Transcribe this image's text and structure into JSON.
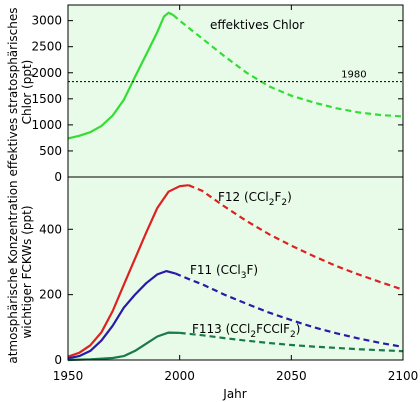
{
  "colors": {
    "plot_background": "#e8fbe8",
    "chlorine": "#33dd33",
    "f12": "#dd2222",
    "f11": "#2a1aa8",
    "f113": "#1a7a4a",
    "axis": "#000000"
  },
  "chart_data": [
    {
      "type": "line",
      "ylabel_line1": "effektives stratosphärisches",
      "ylabel_line2": "Chlor (ppt)",
      "xlim": [
        1950,
        2100
      ],
      "ylim": [
        0,
        3300
      ],
      "yticks": [
        0,
        500,
        1000,
        1500,
        2000,
        2500,
        3000
      ],
      "reference_line": {
        "value": 1830,
        "label": "1980"
      },
      "series": [
        {
          "name": "effektives Chlor",
          "color_key": "chlorine",
          "observed": [
            [
              1950,
              740
            ],
            [
              1955,
              790
            ],
            [
              1960,
              860
            ],
            [
              1965,
              980
            ],
            [
              1970,
              1180
            ],
            [
              1975,
              1480
            ],
            [
              1980,
              1920
            ],
            [
              1985,
              2350
            ],
            [
              1990,
              2780
            ],
            [
              1993,
              3080
            ],
            [
              1995,
              3150
            ],
            [
              1997,
              3110
            ]
          ],
          "projected": [
            [
              1997,
              3110
            ],
            [
              2000,
              3000
            ],
            [
              2010,
              2660
            ],
            [
              2020,
              2320
            ],
            [
              2030,
              2000
            ],
            [
              2040,
              1740
            ],
            [
              2050,
              1560
            ],
            [
              2060,
              1430
            ],
            [
              2070,
              1320
            ],
            [
              2080,
              1240
            ],
            [
              2090,
              1190
            ],
            [
              2100,
              1160
            ]
          ]
        }
      ]
    },
    {
      "type": "line",
      "xlabel": "Jahr",
      "ylabel_line1": "atmosphärische Konzentration",
      "ylabel_line2": "wichtiger FCKWs (ppt)",
      "xlim": [
        1950,
        2100
      ],
      "ylim": [
        0,
        560
      ],
      "xticks": [
        1950,
        2000,
        2050,
        2100
      ],
      "yticks": [
        0,
        200,
        400
      ],
      "series": [
        {
          "name": "F12 (CCl2F2)",
          "label_main": "F12 (CCl",
          "label_sub1": "2",
          "label_mid": "F",
          "label_sub2": "2",
          "label_end": ")",
          "color_key": "f12",
          "observed": [
            [
              1950,
              10
            ],
            [
              1955,
              22
            ],
            [
              1960,
              45
            ],
            [
              1965,
              85
            ],
            [
              1970,
              150
            ],
            [
              1975,
              230
            ],
            [
              1980,
              310
            ],
            [
              1985,
              390
            ],
            [
              1990,
              465
            ],
            [
              1995,
              515
            ],
            [
              2000,
              532
            ],
            [
              2004,
              535
            ]
          ],
          "projected": [
            [
              2004,
              535
            ],
            [
              2010,
              518
            ],
            [
              2020,
              470
            ],
            [
              2030,
              425
            ],
            [
              2040,
              385
            ],
            [
              2050,
              350
            ],
            [
              2060,
              318
            ],
            [
              2070,
              288
            ],
            [
              2080,
              262
            ],
            [
              2090,
              238
            ],
            [
              2100,
              215
            ]
          ]
        },
        {
          "name": "F11 (CCl3F)",
          "label_main": "F11 (CCl",
          "label_sub1": "3",
          "label_end": "F)",
          "color_key": "f11",
          "observed": [
            [
              1950,
              5
            ],
            [
              1955,
              12
            ],
            [
              1960,
              28
            ],
            [
              1965,
              60
            ],
            [
              1970,
              105
            ],
            [
              1975,
              160
            ],
            [
              1980,
              200
            ],
            [
              1985,
              235
            ],
            [
              1990,
              262
            ],
            [
              1994,
              272
            ],
            [
              1998,
              265
            ]
          ],
          "projected": [
            [
              1998,
              265
            ],
            [
              2005,
              245
            ],
            [
              2010,
              232
            ],
            [
              2020,
              200
            ],
            [
              2030,
              172
            ],
            [
              2040,
              145
            ],
            [
              2050,
              122
            ],
            [
              2060,
              100
            ],
            [
              2070,
              82
            ],
            [
              2080,
              66
            ],
            [
              2090,
              52
            ],
            [
              2100,
              40
            ]
          ]
        },
        {
          "name": "F113 (CCl2FCClF2)",
          "label_main": "F113 (CCl",
          "label_sub1": "2",
          "label_mid": "FCClF",
          "label_sub2": "2",
          "label_end": ")",
          "color_key": "f113",
          "observed": [
            [
              1950,
              0
            ],
            [
              1960,
              2
            ],
            [
              1970,
              6
            ],
            [
              1975,
              12
            ],
            [
              1980,
              28
            ],
            [
              1985,
              50
            ],
            [
              1990,
              72
            ],
            [
              1995,
              84
            ],
            [
              2000,
              83
            ]
          ],
          "projected": [
            [
              2000,
              83
            ],
            [
              2010,
              76
            ],
            [
              2020,
              67
            ],
            [
              2030,
              59
            ],
            [
              2040,
              52
            ],
            [
              2050,
              46
            ],
            [
              2060,
              41
            ],
            [
              2070,
              37
            ],
            [
              2080,
              33
            ],
            [
              2090,
              30
            ],
            [
              2100,
              27
            ]
          ]
        }
      ]
    }
  ]
}
